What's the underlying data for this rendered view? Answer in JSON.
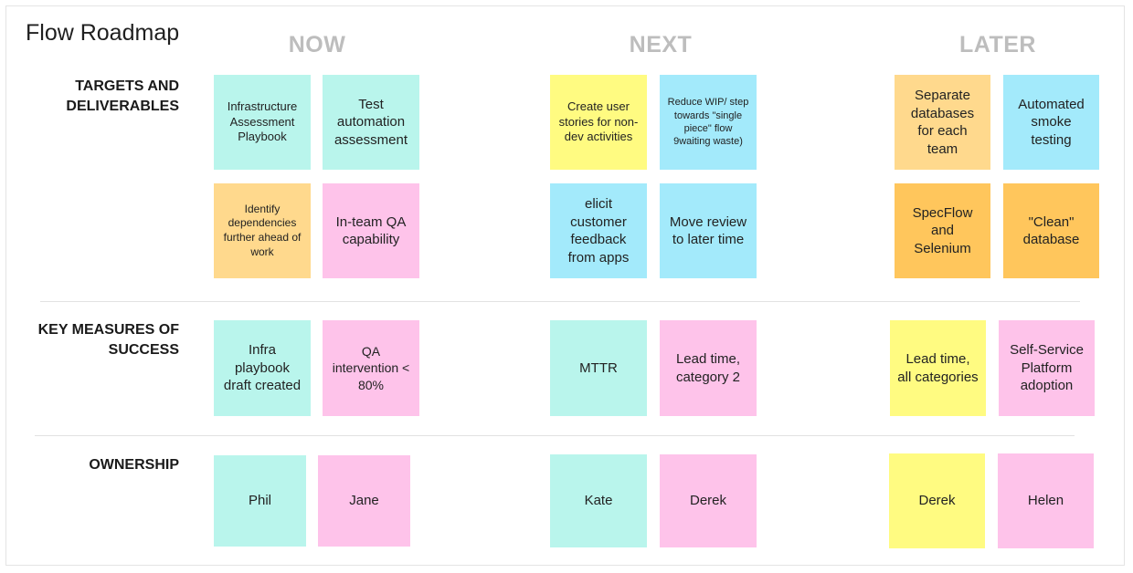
{
  "title": "Flow Roadmap",
  "columns": {
    "now": "NOW",
    "next": "NEXT",
    "later": "LATER"
  },
  "rows": {
    "targets": "TARGETS AND DELIVERABLES",
    "measures": "KEY MEASURES OF SUCCESS",
    "ownership": "OWNERSHIP"
  },
  "notes": {
    "infra_playbook": "Infrastructure Assessment Playbook",
    "test_automation": "Test automation assessment",
    "identify_deps": "Identify dependencies further ahead of work",
    "inteam_qa": "In-team QA capability",
    "create_stories": "Create user stories for non-dev activities",
    "reduce_wip": "Reduce WIP/ step towards \"single piece\" flow 9waiting waste)",
    "elicit_feedback": "elicit customer feedback from apps",
    "move_review": "Move review to later time",
    "separate_db": "Separate databases for each team",
    "smoke_testing": "Automated smoke testing",
    "specflow": "SpecFlow and Selenium",
    "clean_db": "\"Clean\" database",
    "infra_draft": "Infra playbook draft created",
    "qa_intervention": "QA intervention < 80%",
    "mttr": "MTTR",
    "lead_time_cat2": "Lead time, category 2",
    "lead_time_all": "Lead time, all categories",
    "self_service": "Self-Service Platform adoption",
    "owner_phil": "Phil",
    "owner_jane": "Jane",
    "owner_kate": "Kate",
    "owner_derek_next": "Derek",
    "owner_derek_later": "Derek",
    "owner_helen": "Helen"
  }
}
